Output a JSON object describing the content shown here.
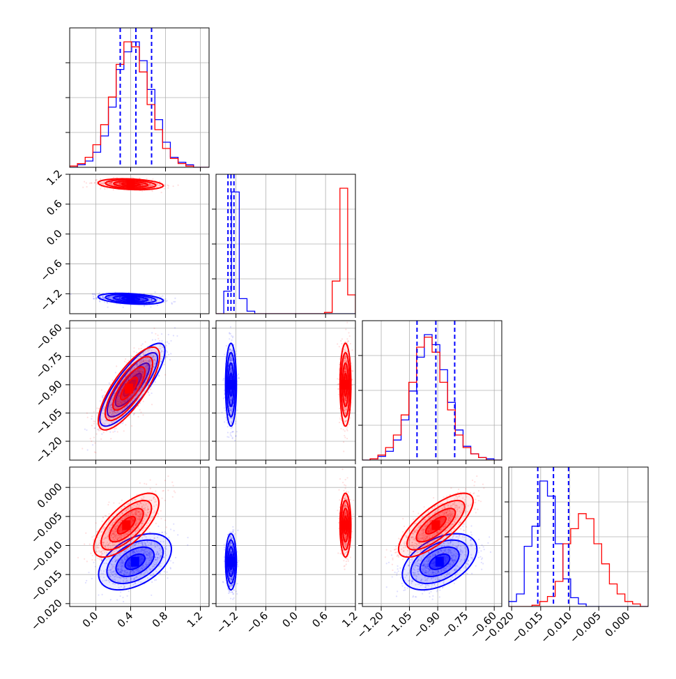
{
  "chart_data": {
    "type": "corner",
    "colors": {
      "a": "#0000ff",
      "b": "#ff0000"
    },
    "grid": true,
    "parameters": [
      {
        "range": [
          -0.3,
          1.3
        ],
        "ticks": [
          "0.0",
          "0.4",
          "0.8",
          "1.2"
        ],
        "tick_values": [
          0.0,
          0.4,
          0.8,
          1.2
        ],
        "quantiles_blue": [
          0.28,
          0.46,
          0.64
        ]
      },
      {
        "range": [
          -1.6,
          1.2
        ],
        "ticks": [
          "−1.2",
          "−0.6",
          "0.0",
          "0.6",
          "1.2"
        ],
        "tick_values": [
          -1.2,
          -0.6,
          0.0,
          0.6,
          1.2
        ],
        "quantiles_blue": [
          -1.36,
          -1.3,
          -1.24
        ]
      },
      {
        "range": [
          -1.3,
          -0.56
        ],
        "ticks": [
          "−1.20",
          "−1.05",
          "−0.90",
          "−0.75",
          "−0.60"
        ],
        "tick_values": [
          -1.2,
          -1.05,
          -0.9,
          -0.75,
          -0.6
        ],
        "quantiles_blue": [
          -1.01,
          -0.91,
          -0.81
        ]
      },
      {
        "range": [
          -0.0205,
          0.0035
        ],
        "ticks": [
          "−0.020",
          "−0.015",
          "−0.010",
          "−0.005",
          "0.000"
        ],
        "tick_values": [
          -0.02,
          -0.015,
          -0.01,
          -0.005,
          0.0
        ],
        "quantiles_blue": [
          -0.0155,
          -0.0128,
          -0.0102
        ]
      }
    ],
    "histograms": [
      {
        "blue": [
          0,
          0.02,
          0.05,
          0.12,
          0.25,
          0.48,
          0.78,
          0.92,
          1.0,
          0.85,
          0.62,
          0.38,
          0.2,
          0.08,
          0.04,
          0.02,
          0,
          0
        ],
        "red": [
          0.01,
          0.03,
          0.08,
          0.18,
          0.34,
          0.56,
          0.82,
          1.0,
          0.96,
          0.76,
          0.5,
          0.3,
          0.15,
          0.07,
          0.03,
          0.01,
          0,
          0
        ]
      },
      {
        "blue": [
          0,
          0.18,
          0.97,
          0.12,
          0.02,
          0,
          0,
          0,
          0,
          0,
          0,
          0,
          0,
          0,
          0,
          0,
          0,
          0
        ],
        "red": [
          0,
          0,
          0,
          0,
          0,
          0,
          0,
          0,
          0,
          0,
          0,
          0,
          0,
          0,
          0.01,
          0.26,
          1.0,
          0.15
        ]
      },
      {
        "blue": [
          0,
          0.01,
          0.03,
          0.07,
          0.16,
          0.32,
          0.55,
          0.82,
          1.0,
          0.92,
          0.72,
          0.46,
          0.24,
          0.11,
          0.05,
          0.02,
          0.01,
          0
        ],
        "red": [
          0,
          0.01,
          0.04,
          0.1,
          0.2,
          0.36,
          0.62,
          0.9,
          0.98,
          0.86,
          0.62,
          0.4,
          0.2,
          0.1,
          0.05,
          0.02,
          0,
          0
        ]
      },
      {
        "blue": [
          0.04,
          0.1,
          0.48,
          0.64,
          1.0,
          0.88,
          0.5,
          0.22,
          0.07,
          0.02,
          0,
          0,
          0,
          0,
          0,
          0,
          0,
          0
        ],
        "red": [
          0,
          0,
          0,
          0.01,
          0.04,
          0.08,
          0.2,
          0.5,
          0.62,
          0.74,
          0.7,
          0.5,
          0.34,
          0.18,
          0.1,
          0.04,
          0.02,
          0
        ]
      }
    ],
    "pairs": [
      {
        "i": 1,
        "j": 0,
        "blue": {
          "mean": [
            0.4,
            -1.3
          ],
          "sd": [
            0.17,
            0.05
          ],
          "rho": -0.35
        },
        "red": {
          "mean": [
            0.4,
            1.0
          ],
          "sd": [
            0.17,
            0.05
          ],
          "rho": -0.25
        }
      },
      {
        "i": 2,
        "j": 0,
        "blue": {
          "mean": [
            0.42,
            -0.9
          ],
          "sd": [
            0.17,
            0.1
          ],
          "rho": 0.82
        },
        "red": {
          "mean": [
            0.38,
            -0.92
          ],
          "sd": [
            0.16,
            0.1
          ],
          "rho": 0.78
        }
      },
      {
        "i": 2,
        "j": 1,
        "blue": {
          "mean": [
            -1.3,
            -0.9
          ],
          "sd": [
            0.05,
            0.1
          ],
          "rho": 0.0
        },
        "red": {
          "mean": [
            1.0,
            -0.9
          ],
          "sd": [
            0.05,
            0.1
          ],
          "rho": 0.0
        }
      },
      {
        "i": 3,
        "j": 0,
        "blue": {
          "mean": [
            0.45,
            -0.0128
          ],
          "sd": [
            0.19,
            0.0022
          ],
          "rho": 0.45
        },
        "red": {
          "mean": [
            0.35,
            -0.0065
          ],
          "sd": [
            0.17,
            0.0025
          ],
          "rho": 0.7
        }
      },
      {
        "i": 3,
        "j": 1,
        "blue": {
          "mean": [
            -1.3,
            -0.0128
          ],
          "sd": [
            0.05,
            0.0022
          ],
          "rho": 0.0
        },
        "red": {
          "mean": [
            1.0,
            -0.0065
          ],
          "sd": [
            0.05,
            0.0025
          ],
          "rho": 0.0
        }
      },
      {
        "i": 3,
        "j": 2,
        "blue": {
          "mean": [
            -0.89,
            -0.0128
          ],
          "sd": [
            0.09,
            0.0022
          ],
          "rho": 0.45
        },
        "red": {
          "mean": [
            -0.91,
            -0.0065
          ],
          "sd": [
            0.09,
            0.0025
          ],
          "rho": 0.75
        }
      }
    ]
  }
}
